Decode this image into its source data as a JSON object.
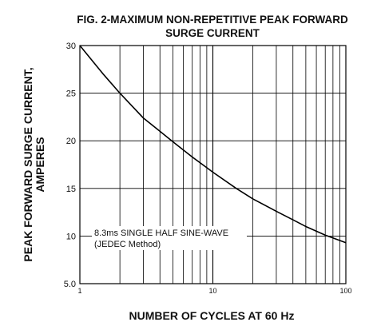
{
  "chart_data": {
    "type": "line",
    "title_line1": "FIG. 2-MAXIMUM NON-REPETITIVE PEAK FORWARD",
    "title_line2": "SURGE CURRENT",
    "xlabel": "NUMBER OF CYCLES AT 60 Hz",
    "ylabel_line1": "PEAK  FORWARD SURGE CURRENT,",
    "ylabel_line2": "AMPERES",
    "x_scale": "log",
    "xlim": [
      1,
      100
    ],
    "ylim": [
      5,
      30
    ],
    "grid": true,
    "x_tick_labels": [
      "1",
      "10",
      "100"
    ],
    "y_tick_labels": [
      "5.0",
      "10",
      "15",
      "20",
      "25",
      "30"
    ],
    "annotation_line1": "8.3ms SINGLE HALF SINE-WAVE",
    "annotation_line2": "(JEDEC Method)",
    "series": [
      {
        "x": [
          1,
          1.5,
          2,
          3,
          4,
          5,
          7,
          10,
          15,
          20,
          30,
          40,
          50,
          70,
          100
        ],
        "y": [
          30,
          27,
          25,
          22.4,
          21,
          19.9,
          18.3,
          16.7,
          15,
          13.9,
          12.6,
          11.7,
          11,
          10.1,
          9.3
        ]
      }
    ]
  }
}
